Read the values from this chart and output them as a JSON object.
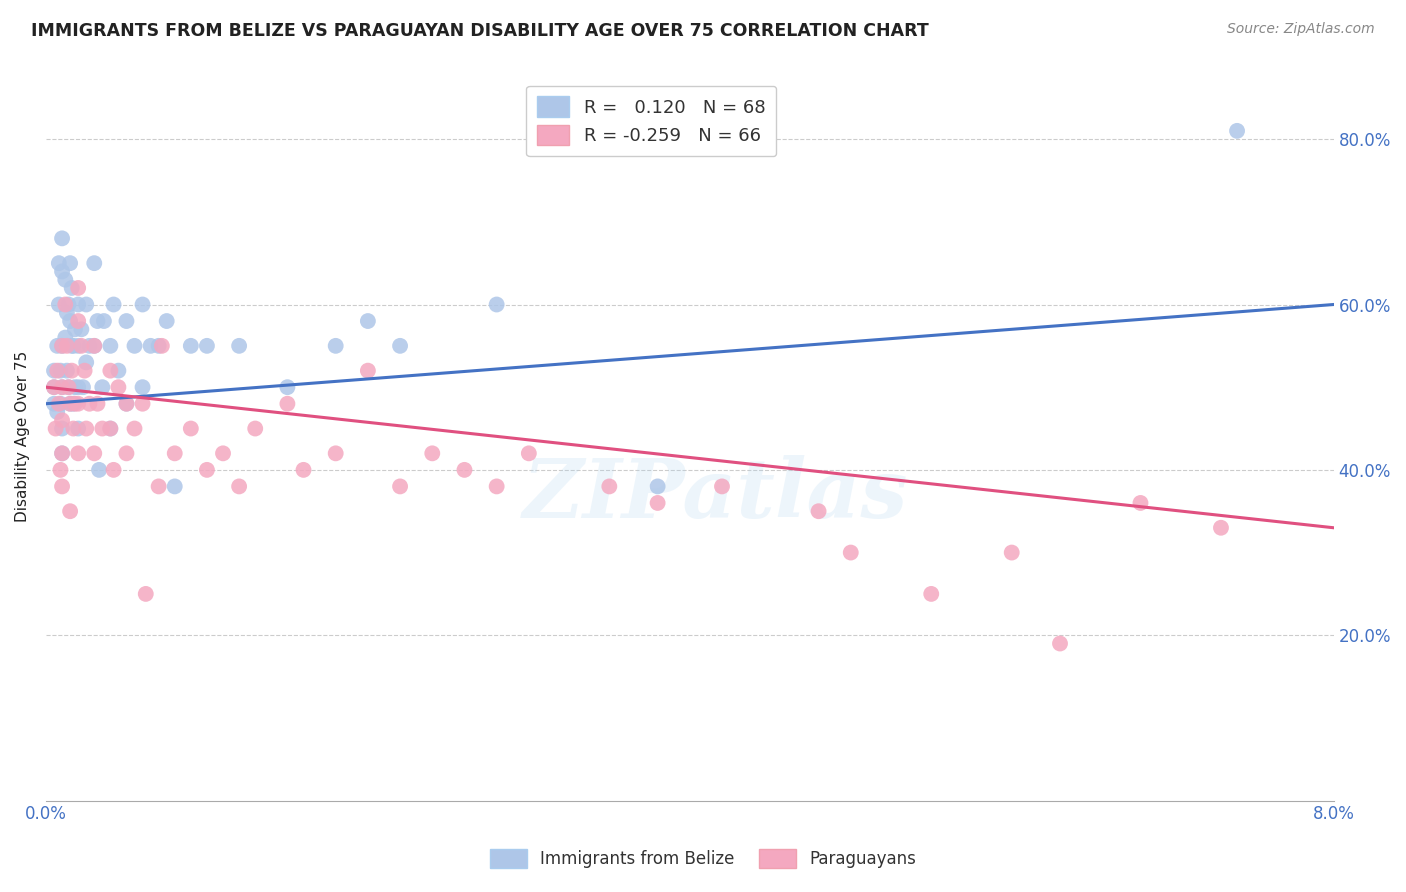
{
  "title": "IMMIGRANTS FROM BELIZE VS PARAGUAYAN DISABILITY AGE OVER 75 CORRELATION CHART",
  "source": "Source: ZipAtlas.com",
  "ylabel": "Disability Age Over 75",
  "legend_belize": "Immigrants from Belize",
  "legend_paraguayans": "Paraguayans",
  "R_belize": 0.12,
  "N_belize": 68,
  "R_paraguayans": -0.259,
  "N_paraguayans": 66,
  "color_belize": "#aec6e8",
  "color_paraguayan": "#f4a8c0",
  "color_belize_line": "#4472c4",
  "color_paraguayan_line": "#e05080",
  "color_belize_text": "#4472c4",
  "color_title": "#222222",
  "color_source": "#888888",
  "background_color": "#ffffff",
  "watermark": "ZIPatlas",
  "xlim": [
    0.0,
    0.08
  ],
  "ylim": [
    0.0,
    0.88
  ],
  "blue_line_y0": 0.48,
  "blue_line_y1": 0.6,
  "pink_line_y0": 0.5,
  "pink_line_y1": 0.33,
  "belize_x": [
    0.0005,
    0.0005,
    0.0005,
    0.0007,
    0.0007,
    0.0008,
    0.0008,
    0.0009,
    0.0009,
    0.001,
    0.001,
    0.001,
    0.001,
    0.001,
    0.001,
    0.0012,
    0.0012,
    0.0013,
    0.0013,
    0.0014,
    0.0014,
    0.0015,
    0.0015,
    0.0015,
    0.0016,
    0.0016,
    0.0017,
    0.0017,
    0.0018,
    0.0018,
    0.002,
    0.002,
    0.002,
    0.002,
    0.0022,
    0.0023,
    0.0025,
    0.0025,
    0.0027,
    0.003,
    0.003,
    0.0032,
    0.0033,
    0.0035,
    0.0036,
    0.004,
    0.004,
    0.0042,
    0.0045,
    0.005,
    0.005,
    0.0055,
    0.006,
    0.006,
    0.0065,
    0.007,
    0.0075,
    0.008,
    0.009,
    0.01,
    0.012,
    0.015,
    0.018,
    0.02,
    0.022,
    0.028,
    0.038,
    0.074
  ],
  "belize_y": [
    0.5,
    0.52,
    0.48,
    0.55,
    0.47,
    0.6,
    0.65,
    0.52,
    0.48,
    0.68,
    0.64,
    0.55,
    0.5,
    0.45,
    0.42,
    0.63,
    0.56,
    0.59,
    0.52,
    0.6,
    0.5,
    0.65,
    0.58,
    0.48,
    0.62,
    0.55,
    0.55,
    0.48,
    0.57,
    0.5,
    0.6,
    0.55,
    0.5,
    0.45,
    0.57,
    0.5,
    0.6,
    0.53,
    0.55,
    0.65,
    0.55,
    0.58,
    0.4,
    0.5,
    0.58,
    0.55,
    0.45,
    0.6,
    0.52,
    0.58,
    0.48,
    0.55,
    0.6,
    0.5,
    0.55,
    0.55,
    0.58,
    0.38,
    0.55,
    0.55,
    0.55,
    0.5,
    0.55,
    0.58,
    0.55,
    0.6,
    0.38,
    0.81
  ],
  "paraguayan_x": [
    0.0005,
    0.0006,
    0.0007,
    0.0008,
    0.0009,
    0.001,
    0.001,
    0.001,
    0.001,
    0.001,
    0.0012,
    0.0013,
    0.0014,
    0.0015,
    0.0015,
    0.0016,
    0.0017,
    0.0018,
    0.002,
    0.002,
    0.002,
    0.002,
    0.0022,
    0.0024,
    0.0025,
    0.0027,
    0.003,
    0.003,
    0.0032,
    0.0035,
    0.004,
    0.004,
    0.0042,
    0.0045,
    0.005,
    0.005,
    0.0055,
    0.006,
    0.0062,
    0.007,
    0.0072,
    0.008,
    0.009,
    0.01,
    0.011,
    0.012,
    0.013,
    0.015,
    0.016,
    0.018,
    0.02,
    0.022,
    0.024,
    0.026,
    0.028,
    0.03,
    0.035,
    0.038,
    0.042,
    0.048,
    0.05,
    0.055,
    0.06,
    0.063,
    0.068,
    0.073
  ],
  "paraguayan_y": [
    0.5,
    0.45,
    0.52,
    0.48,
    0.4,
    0.5,
    0.46,
    0.42,
    0.38,
    0.55,
    0.6,
    0.55,
    0.5,
    0.48,
    0.35,
    0.52,
    0.45,
    0.48,
    0.62,
    0.58,
    0.48,
    0.42,
    0.55,
    0.52,
    0.45,
    0.48,
    0.55,
    0.42,
    0.48,
    0.45,
    0.52,
    0.45,
    0.4,
    0.5,
    0.48,
    0.42,
    0.45,
    0.48,
    0.25,
    0.38,
    0.55,
    0.42,
    0.45,
    0.4,
    0.42,
    0.38,
    0.45,
    0.48,
    0.4,
    0.42,
    0.52,
    0.38,
    0.42,
    0.4,
    0.38,
    0.42,
    0.38,
    0.36,
    0.38,
    0.35,
    0.3,
    0.25,
    0.3,
    0.19,
    0.36,
    0.33
  ]
}
